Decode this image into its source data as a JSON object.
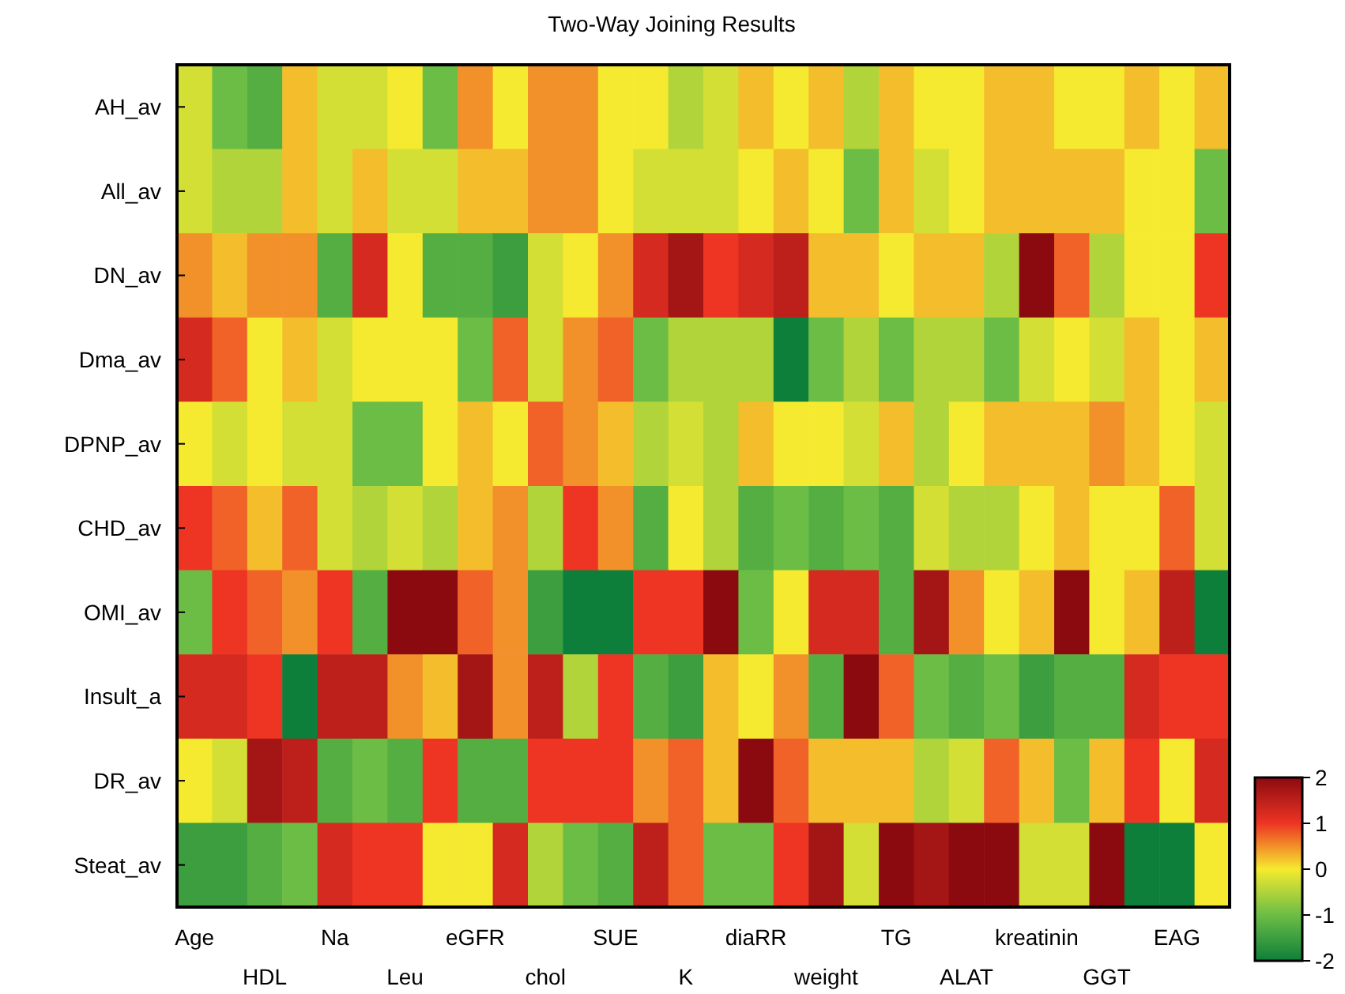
{
  "chart_data": {
    "type": "heatmap",
    "title": "Two-Way  Joining Results",
    "categories": [
      "Age",
      null,
      "HDL",
      null,
      "Na",
      null,
      "Leu",
      null,
      "eGFR",
      null,
      "chol",
      null,
      "SUE",
      null,
      "K",
      null,
      "diaRR",
      null,
      "weight",
      null,
      "TG",
      null,
      "ALAT",
      null,
      "kreatinin",
      null,
      "GGT",
      null,
      "EAG",
      null
    ],
    "y_categories": [
      "AH_av",
      "All_av",
      "DN_av",
      "Dma_av",
      "DPNP_av",
      "CHD_av",
      "OMI_av",
      "Insult_a",
      "DR_av",
      "Steat_av"
    ],
    "cells": [
      [
        -0.25,
        -1,
        -1.25,
        0.25,
        -0.25,
        -0.25,
        0,
        -1,
        0.5,
        0,
        0.5,
        0.5,
        0,
        0,
        -0.5,
        -0.25,
        0.25,
        0,
        0.25,
        -0.5,
        0.25,
        0,
        0,
        0.25,
        0.25,
        0,
        0,
        0.25,
        0,
        0.25
      ],
      [
        -0.25,
        -0.5,
        -0.5,
        0.25,
        -0.25,
        0.25,
        -0.25,
        -0.25,
        0.25,
        0.25,
        0.5,
        0.5,
        0,
        -0.25,
        -0.25,
        -0.25,
        0,
        0.25,
        0,
        -1,
        0.25,
        -0.25,
        0,
        0.25,
        0.25,
        0.25,
        0.25,
        0,
        0,
        -1
      ],
      [
        0.5,
        0.25,
        0.5,
        0.5,
        -1.25,
        1.25,
        0,
        -1.25,
        -1.25,
        -1.5,
        -0.25,
        0,
        0.5,
        1.25,
        1.75,
        1,
        1.25,
        1.5,
        0.25,
        0.25,
        0,
        0.25,
        0.25,
        -0.5,
        2,
        0.75,
        -0.5,
        0,
        0,
        1
      ],
      [
        1.25,
        0.75,
        0,
        0.25,
        -0.25,
        0,
        0,
        0,
        -1,
        0.75,
        -0.25,
        0.5,
        0.75,
        -1,
        -0.5,
        -0.5,
        -0.5,
        -2,
        -1,
        -0.5,
        -1,
        -0.5,
        -0.5,
        -1,
        -0.25,
        0,
        -0.25,
        0.25,
        0,
        0.25
      ],
      [
        0,
        -0.25,
        0,
        -0.25,
        -0.25,
        -1,
        -1,
        0,
        0.25,
        0,
        0.75,
        0.5,
        0.25,
        -0.5,
        -0.25,
        -0.5,
        0.25,
        0,
        0,
        -0.25,
        0.25,
        -0.5,
        0,
        0.25,
        0.25,
        0.25,
        0.5,
        0.25,
        0,
        -0.25
      ],
      [
        1,
        0.75,
        0.25,
        0.75,
        -0.25,
        -0.5,
        -0.25,
        -0.5,
        0.25,
        0.5,
        -0.5,
        1,
        0.5,
        -1.25,
        0,
        -0.5,
        -1.25,
        -1,
        -1.25,
        -1,
        -1.25,
        -0.25,
        -0.5,
        -0.5,
        0,
        0.25,
        0,
        0,
        0.75,
        -0.25
      ],
      [
        -1,
        1,
        0.75,
        0.5,
        1,
        -1.25,
        2,
        2,
        0.75,
        0.5,
        -1.5,
        -2,
        -2,
        1,
        1,
        2,
        -1,
        0,
        1.25,
        1.25,
        -1.25,
        1.75,
        0.5,
        0,
        0.25,
        2,
        0,
        0.25,
        1.5,
        -2
      ],
      [
        1.25,
        1.25,
        1,
        -2,
        1.5,
        1.5,
        0.5,
        0.25,
        1.75,
        0.5,
        1.5,
        -0.5,
        1,
        -1.25,
        -1.5,
        0.25,
        0,
        0.5,
        -1.25,
        2,
        0.75,
        -1,
        -1.25,
        -1,
        -1.5,
        -1.25,
        -1.25,
        1.25,
        1,
        1
      ],
      [
        0,
        -0.25,
        1.75,
        1.5,
        -1.25,
        -1,
        -1.25,
        1,
        -1.25,
        -1.25,
        1,
        1,
        1,
        0.5,
        0.75,
        0.25,
        2,
        0.75,
        0.25,
        0.25,
        0.25,
        -0.5,
        -0.25,
        0.75,
        0.25,
        -1,
        0.25,
        1,
        0,
        1.25
      ],
      [
        -1.5,
        -1.5,
        -1.25,
        -1,
        1.25,
        1,
        1,
        0,
        0,
        1.25,
        -0.5,
        -1,
        -1.25,
        1.5,
        0.75,
        -1,
        -1,
        1,
        1.75,
        -0.25,
        2,
        1.75,
        2,
        2,
        -0.25,
        -0.25,
        2,
        -2,
        -2,
        0
      ]
    ],
    "clim": [
      -2,
      2
    ],
    "cticks": [
      -2,
      -1,
      0,
      1,
      2
    ]
  }
}
